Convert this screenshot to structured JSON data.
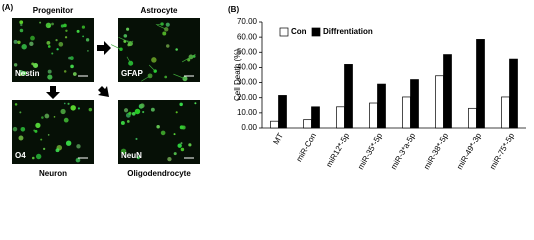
{
  "figure": {
    "panel_a": {
      "label": "(A)",
      "images": [
        {
          "title": "Progenitor",
          "marker": "Nestin"
        },
        {
          "title": "Astrocyte",
          "marker": "GFAP"
        },
        {
          "title": "Neuron",
          "marker": "O4"
        },
        {
          "title": "Oligodendrocyte",
          "marker": "NeuN"
        }
      ]
    },
    "panel_b": {
      "label": "(B)"
    }
  },
  "chart_data": {
    "type": "bar",
    "y_label": "Cell Death (%)",
    "categories": [
      "MT",
      "miR-Con",
      "miR12*-5p",
      "miR-35*-5p",
      "miR-3*a-5p",
      "miR-38*-5p",
      "miR-49*-3p",
      "miR-75*-5p"
    ],
    "series": [
      {
        "name": "Con",
        "color": "#ffffff",
        "values": [
          4.5,
          5.5,
          14,
          16.5,
          20.5,
          34.5,
          13,
          20.5
        ]
      },
      {
        "name": "Diffrentiation",
        "color": "#000000",
        "values": [
          21.5,
          14,
          42,
          29,
          32,
          48.5,
          58.5,
          45.5
        ]
      }
    ],
    "ylim": [
      0,
      70
    ],
    "yticks": [
      {
        "value": 0,
        "label": "0.00"
      },
      {
        "value": 10,
        "label": "10.00"
      },
      {
        "value": 20,
        "label": "20.00"
      },
      {
        "value": 30,
        "label": "30.00"
      },
      {
        "value": 40,
        "label": "40.00"
      },
      {
        "value": 50,
        "label": "50.00"
      },
      {
        "value": 60,
        "label": "60.00"
      },
      {
        "value": 70,
        "label": "70.00"
      }
    ],
    "legend": "upper-left"
  }
}
